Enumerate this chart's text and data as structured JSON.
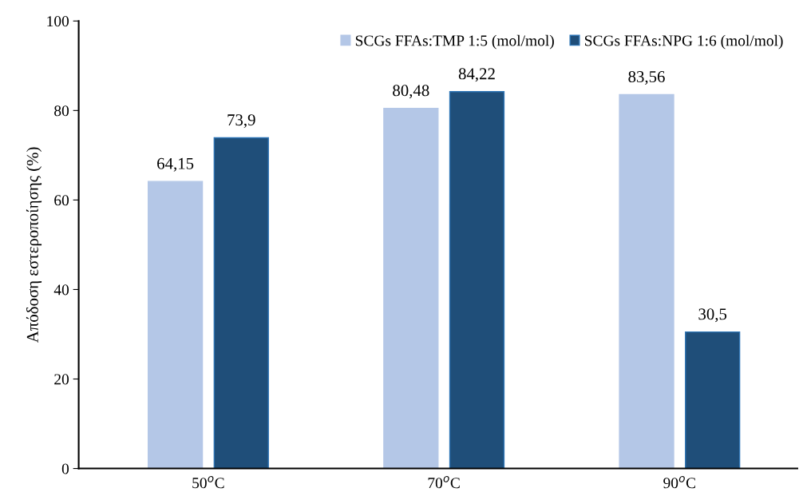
{
  "chart_data": {
    "type": "bar",
    "ylabel": "Απόδοση εστεροποίησης (%)",
    "categories": [
      "50$^{o}$C",
      "70$^{o}$C",
      "90$^{o}$C"
    ],
    "series": [
      {
        "name": "SCGs FFAs:TMP 1:5 (mol/mol)",
        "color": "#b4c7e7",
        "values": [
          64.15,
          80.48,
          83.56
        ],
        "value_labels": [
          "64,15",
          "80,48",
          "83,56"
        ]
      },
      {
        "name": "SCGs FFAs:NPG 1:6 (mol/mol)",
        "color": "#1f4e79",
        "values": [
          73.9,
          84.22,
          30.5
        ],
        "value_labels": [
          "73,9",
          "84,22",
          "30,5"
        ]
      }
    ],
    "ylim": [
      0,
      100
    ],
    "yticks": [
      0,
      20,
      40,
      60,
      80,
      100
    ],
    "grid": false,
    "legend": "top right"
  }
}
